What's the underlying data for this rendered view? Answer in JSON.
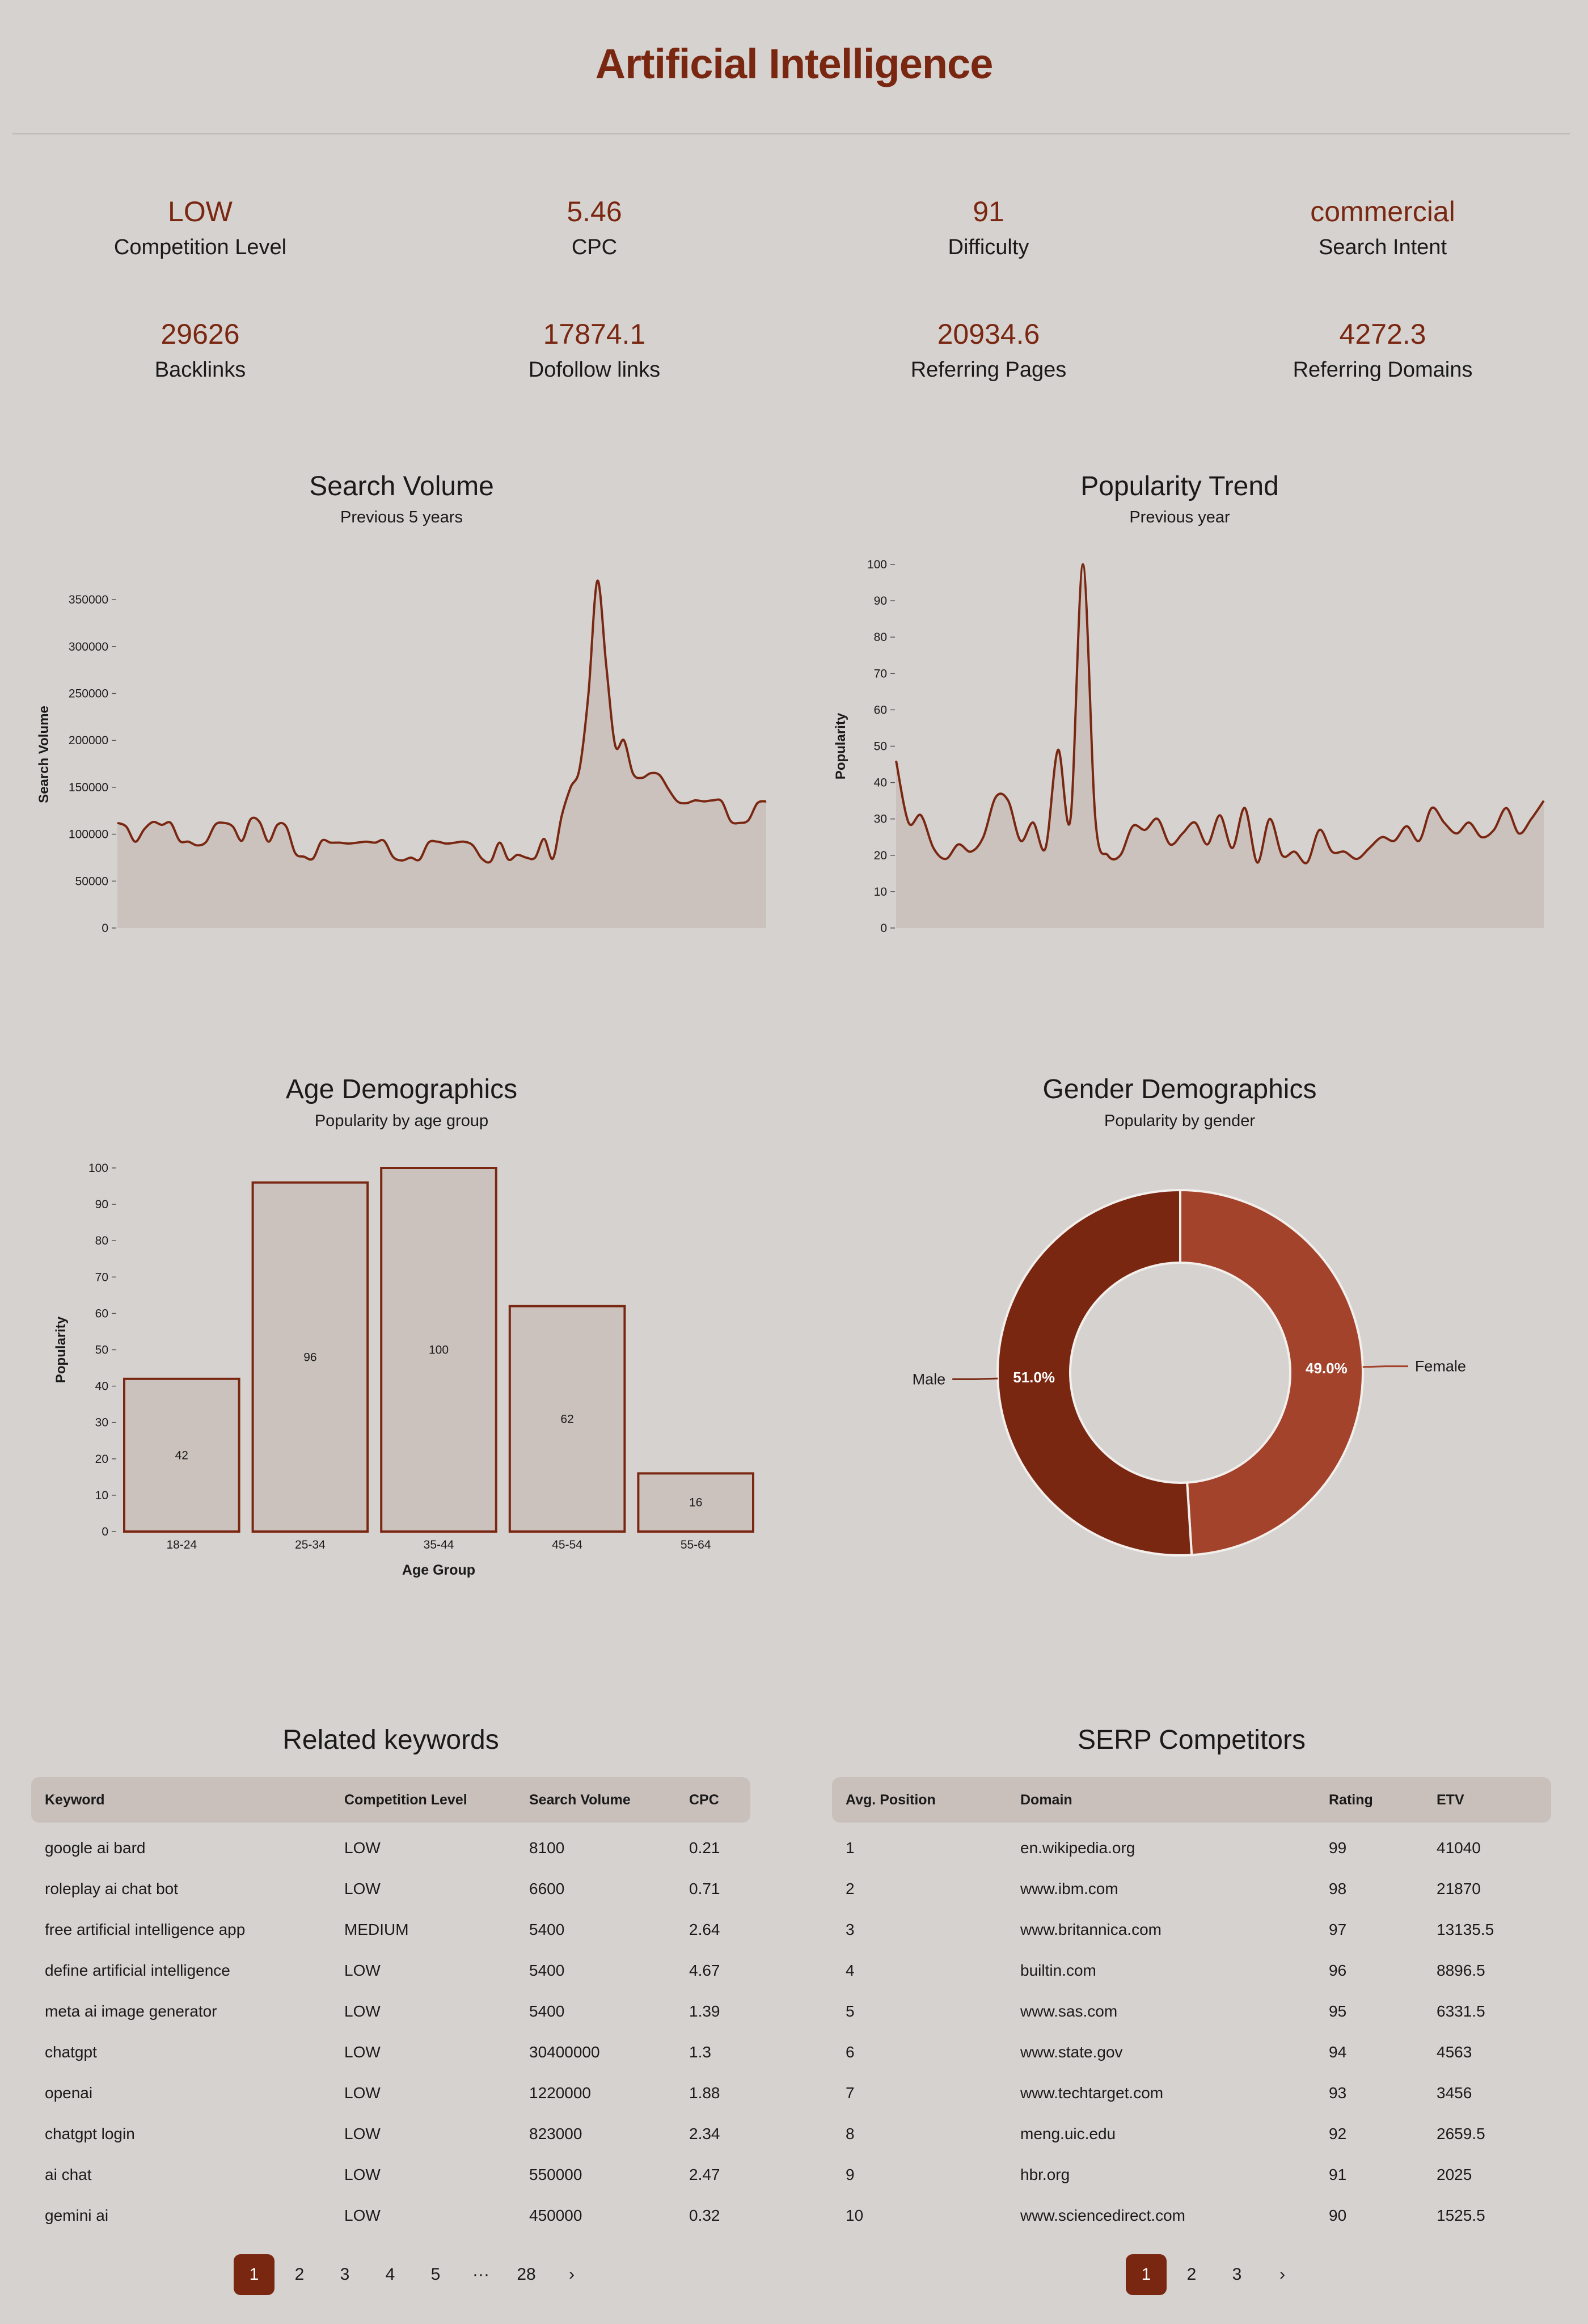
{
  "title": "Artificial Intelligence",
  "stats": [
    {
      "value": "LOW",
      "label": "Competition Level"
    },
    {
      "value": "5.46",
      "label": "CPC"
    },
    {
      "value": "91",
      "label": "Difficulty"
    },
    {
      "value": "commercial",
      "label": "Search Intent"
    },
    {
      "value": "29626",
      "label": "Backlinks"
    },
    {
      "value": "17874.1",
      "label": "Dofollow links"
    },
    {
      "value": "20934.6",
      "label": "Referring Pages"
    },
    {
      "value": "4272.3",
      "label": "Referring Domains"
    }
  ],
  "colors": {
    "accent": "#7a2712",
    "accent2": "#a4432c",
    "fill": "#cbc1bd",
    "bg": "#d6d2cf"
  },
  "chart_data": [
    {
      "type": "area",
      "title": "Search Volume",
      "subtitle": "Previous 5 years",
      "ylabel": "Search Volume",
      "xlabel": "",
      "ylim": [
        0,
        370000
      ],
      "yticks": [
        0,
        50000,
        100000,
        150000,
        200000,
        250000,
        300000,
        350000
      ],
      "values": [
        112000,
        108000,
        92000,
        105000,
        113000,
        110000,
        112000,
        93000,
        92000,
        88000,
        92000,
        110000,
        112000,
        108000,
        93000,
        116000,
        113000,
        92000,
        110000,
        108000,
        80000,
        76000,
        74000,
        93000,
        91000,
        91000,
        90000,
        91000,
        92000,
        91000,
        93000,
        76000,
        72000,
        75000,
        73000,
        91000,
        92000,
        90000,
        91000,
        92000,
        88000,
        74000,
        71000,
        91000,
        73000,
        78000,
        75000,
        75000,
        95000,
        74000,
        120000,
        150000,
        170000,
        250000,
        370000,
        280000,
        195000,
        200000,
        165000,
        160000,
        165000,
        163000,
        148000,
        135000,
        133000,
        136000,
        135000,
        136000,
        135000,
        114000,
        112000,
        115000,
        133000,
        135000
      ],
      "grid": false
    },
    {
      "type": "area",
      "title": "Popularity Trend",
      "subtitle": "Previous year",
      "ylabel": "Popularity",
      "xlabel": "",
      "ylim": [
        0,
        100
      ],
      "yticks": [
        0,
        10,
        20,
        30,
        40,
        50,
        60,
        70,
        80,
        90,
        100
      ],
      "values": [
        46,
        29,
        31,
        22,
        19,
        23,
        21,
        25,
        36,
        35,
        24,
        29,
        22,
        49,
        30,
        100,
        30,
        20,
        20,
        28,
        27,
        30,
        23,
        26,
        29,
        23,
        31,
        22,
        33,
        18,
        30,
        20,
        21,
        18,
        27,
        21,
        21,
        19,
        22,
        25,
        24,
        28,
        24,
        33,
        29,
        26,
        29,
        25,
        27,
        33,
        26,
        30,
        35
      ],
      "grid": false
    },
    {
      "type": "bar",
      "title": "Age Demographics",
      "subtitle": "Popularity by age group",
      "xlabel": "Age Group",
      "ylabel": "Popularity",
      "ylim": [
        0,
        100
      ],
      "yticks": [
        0,
        10,
        20,
        30,
        40,
        50,
        60,
        70,
        80,
        90,
        100
      ],
      "categories": [
        "18-24",
        "25-34",
        "35-44",
        "45-54",
        "55-64"
      ],
      "values": [
        42,
        96,
        100,
        62,
        16
      ]
    },
    {
      "type": "pie",
      "title": "Gender Demographics",
      "subtitle": "Popularity by gender",
      "labels": [
        "Male",
        "Female"
      ],
      "values": [
        51.0,
        49.0
      ],
      "value_labels": [
        "51.0%",
        "49.0%"
      ],
      "colors": [
        "#7a2712",
        "#a4432c"
      ]
    }
  ],
  "related": {
    "title": "Related keywords",
    "headers": [
      "Keyword",
      "Competition Level",
      "Search Volume",
      "CPC"
    ],
    "rows": [
      [
        "google ai bard",
        "LOW",
        "8100",
        "0.21"
      ],
      [
        "roleplay ai chat bot",
        "LOW",
        "6600",
        "0.71"
      ],
      [
        "free artificial intelligence app",
        "MEDIUM",
        "5400",
        "2.64"
      ],
      [
        "define artificial intelligence",
        "LOW",
        "5400",
        "4.67"
      ],
      [
        "meta ai image generator",
        "LOW",
        "5400",
        "1.39"
      ],
      [
        "chatgpt",
        "LOW",
        "30400000",
        "1.3"
      ],
      [
        "openai",
        "LOW",
        "1220000",
        "1.88"
      ],
      [
        "chatgpt login",
        "LOW",
        "823000",
        "2.34"
      ],
      [
        "ai chat",
        "LOW",
        "550000",
        "2.47"
      ],
      [
        "gemini ai",
        "LOW",
        "450000",
        "0.32"
      ]
    ],
    "pages": [
      "1",
      "2",
      "3",
      "4",
      "5",
      "···",
      "28",
      "›"
    ]
  },
  "serp": {
    "title": "SERP Competitors",
    "headers": [
      "Avg. Position",
      "Domain",
      "Rating",
      "ETV"
    ],
    "rows": [
      [
        "1",
        "en.wikipedia.org",
        "99",
        "41040"
      ],
      [
        "2",
        "www.ibm.com",
        "98",
        "21870"
      ],
      [
        "3",
        "www.britannica.com",
        "97",
        "13135.5"
      ],
      [
        "4",
        "builtin.com",
        "96",
        "8896.5"
      ],
      [
        "5",
        "www.sas.com",
        "95",
        "6331.5"
      ],
      [
        "6",
        "www.state.gov",
        "94",
        "4563"
      ],
      [
        "7",
        "www.techtarget.com",
        "93",
        "3456"
      ],
      [
        "8",
        "meng.uic.edu",
        "92",
        "2659.5"
      ],
      [
        "9",
        "hbr.org",
        "91",
        "2025"
      ],
      [
        "10",
        "www.sciencedirect.com",
        "90",
        "1525.5"
      ]
    ],
    "pages": [
      "1",
      "2",
      "3",
      "›"
    ]
  }
}
